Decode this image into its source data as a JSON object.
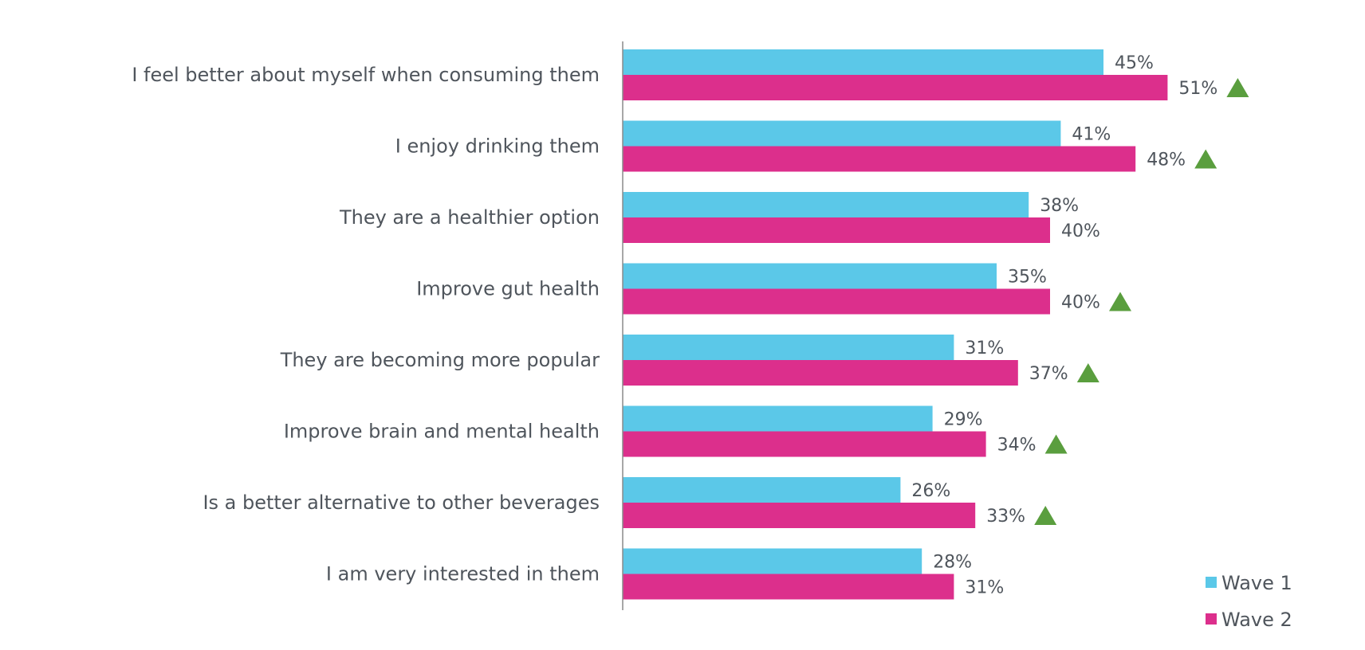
{
  "colors": {
    "wave1": "#5bc8e8",
    "wave2": "#dc2f8c",
    "up_marker": "#5a9e3e",
    "axis": "#8a8a8a"
  },
  "legend": {
    "position": "bottom-right",
    "items": [
      "Wave 1",
      "Wave 2"
    ]
  },
  "chart_data": {
    "type": "bar",
    "orientation": "horizontal",
    "categories": [
      "I feel better about myself when consuming them",
      "I enjoy drinking them",
      "They are a healthier option",
      "Improve gut health",
      "They are becoming more popular",
      "Improve brain and mental health",
      "Is a better alternative to other beverages",
      "I am very interested in them"
    ],
    "series": [
      {
        "name": "Wave 1",
        "values": [
          45,
          41,
          38,
          35,
          31,
          29,
          26,
          28
        ],
        "labels": [
          "45%",
          "41%",
          "38%",
          "35%",
          "31%",
          "29%",
          "26%",
          "28%"
        ]
      },
      {
        "name": "Wave 2",
        "values": [
          51,
          48,
          40,
          40,
          37,
          34,
          33,
          31
        ],
        "labels": [
          "51%",
          "48%",
          "40%",
          "40%",
          "37%",
          "34%",
          "33%",
          "31%"
        ]
      }
    ],
    "significant_increase": [
      true,
      true,
      false,
      true,
      true,
      true,
      true,
      false
    ],
    "xlim": [
      0,
      100
    ],
    "grid": false
  }
}
